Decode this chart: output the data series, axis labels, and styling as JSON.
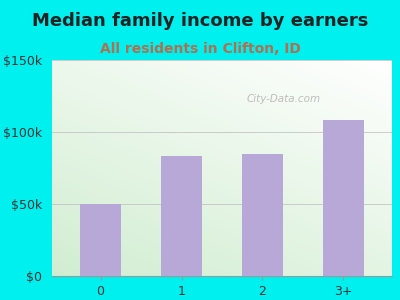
{
  "categories": [
    "0",
    "1",
    "2",
    "3+"
  ],
  "values": [
    50000,
    83000,
    85000,
    108000
  ],
  "bar_color": "#b8a8d8",
  "title": "Median family income by earners",
  "subtitle": "All residents in Clifton, ID",
  "title_color": "#222222",
  "subtitle_color": "#b07050",
  "background_color": "#00efef",
  "ylim": [
    0,
    150000
  ],
  "yticks": [
    0,
    50000,
    100000,
    150000
  ],
  "ytick_labels": [
    "$0",
    "$50k",
    "$100k",
    "$150k"
  ],
  "watermark": "City-Data.com",
  "title_fontsize": 13,
  "subtitle_fontsize": 10,
  "tick_fontsize": 9
}
